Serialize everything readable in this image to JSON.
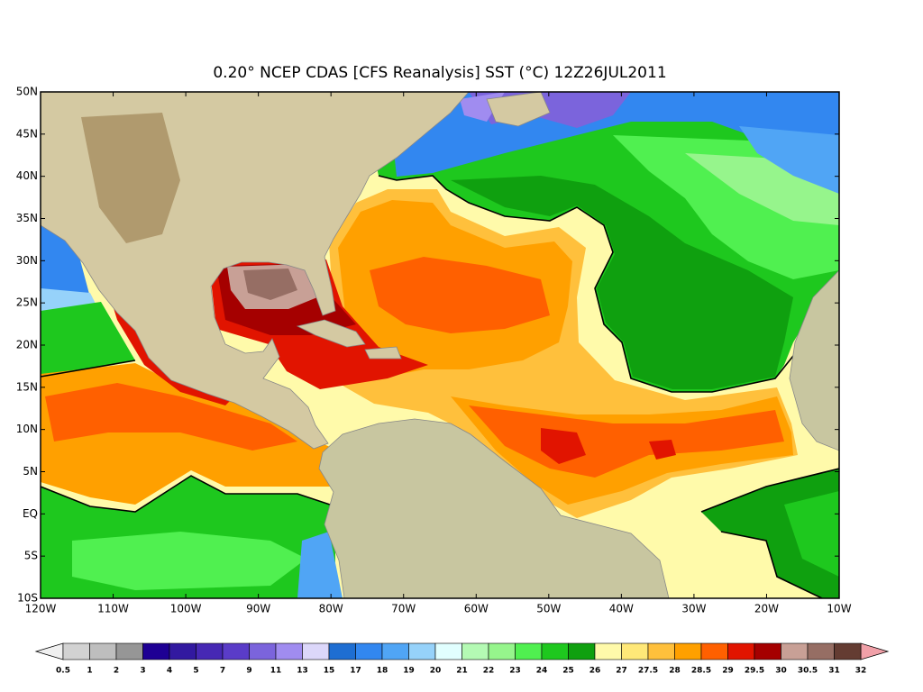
{
  "title": "0.20° NCEP CDAS [CFS Reanalysis] SST (°C) 12Z26JUL2011",
  "lat_labels": [
    "50N",
    "45N",
    "40N",
    "35N",
    "30N",
    "25N",
    "20N",
    "15N",
    "10N",
    "5N",
    "EQ",
    "5S",
    "10S"
  ],
  "lon_labels": [
    "120W",
    "110W",
    "100W",
    "90W",
    "80W",
    "70W",
    "60W",
    "50W",
    "40W",
    "30W",
    "20W",
    "10W"
  ],
  "colorbar": {
    "labels": [
      0.5,
      1,
      2,
      3,
      4,
      5,
      7,
      9,
      11,
      13,
      15,
      17,
      18,
      19,
      20,
      21,
      22,
      23,
      24,
      25,
      26,
      27,
      27.5,
      28,
      28.5,
      29,
      29.5,
      30,
      30.5,
      31,
      32
    ],
    "colors": [
      "#d2d2d2",
      "#bebebe",
      "#969696",
      "#1e0094",
      "#3219a0",
      "#4628b4",
      "#5a3cc8",
      "#7b64dc",
      "#a08cf0",
      "#dcd7fa",
      "#1e6ed2",
      "#3287f0",
      "#50a5f5",
      "#96d2fa",
      "#e1ffff",
      "#b4fab4",
      "#96f58c",
      "#50f050",
      "#1ec81e",
      "#0fa00f",
      "#fffaaa",
      "#ffe878",
      "#ffc03c",
      "#ffa000",
      "#ff6000",
      "#e11400",
      "#a50000",
      "#c8a096",
      "#966e64",
      "#643c32"
    ],
    "under_color": "#f0f0f0",
    "over_color": "#f0a0a8"
  }
}
